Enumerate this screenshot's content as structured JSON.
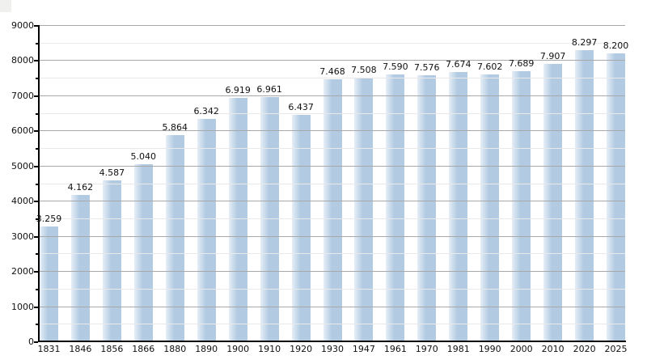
{
  "chart_data": {
    "type": "bar",
    "title": "",
    "xlabel": "",
    "ylabel": "",
    "categories": [
      "1831",
      "1846",
      "1856",
      "1866",
      "1880",
      "1890",
      "1900",
      "1910",
      "1920",
      "1930",
      "1947",
      "1961",
      "1970",
      "1981",
      "1990",
      "2000",
      "2010",
      "2020",
      "2025"
    ],
    "values": [
      3259,
      4162,
      4587,
      5040,
      5864,
      6342,
      6919,
      6961,
      6437,
      7468,
      7508,
      7590,
      7576,
      7674,
      7602,
      7689,
      7907,
      8297,
      8200
    ],
    "bar_labels": [
      "3.259",
      "4.162",
      "4.587",
      "5.040",
      "5.864",
      "6.342",
      "6.919",
      "6.961",
      "6.437",
      "7.468",
      "7.508",
      "7.590",
      "7.576",
      "7.674",
      "7.602",
      "7.689",
      "7.907",
      "8.297",
      "8.200"
    ],
    "ylim": [
      0,
      9000
    ],
    "y_major_step": 1000,
    "y_minor_step": 500,
    "y_tick_labels": [
      "0",
      "1000",
      "2000",
      "3000",
      "4000",
      "5000",
      "6000",
      "7000",
      "8000",
      "9000"
    ],
    "grid": "on",
    "legend": "none",
    "colors": {
      "bar_base": "#b2cbe3",
      "bar_light_edge": "#e6eef7",
      "major_gridline": "#a8a8a8",
      "minor_gridline": "#e9e9e9",
      "axis": "#000000",
      "text": "#111111",
      "background": "#ffffff",
      "corner_artifact": "#f0f0ee"
    }
  }
}
